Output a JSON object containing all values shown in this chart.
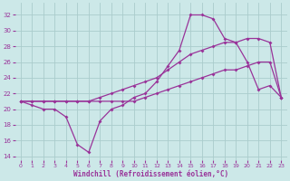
{
  "xlabel": "Windchill (Refroidissement éolien,°C)",
  "ylabel": "",
  "xlim": [
    -0.5,
    23.5
  ],
  "ylim": [
    13.5,
    33.5
  ],
  "yticks": [
    14,
    16,
    18,
    20,
    22,
    24,
    26,
    28,
    30,
    32
  ],
  "xticks": [
    0,
    1,
    2,
    3,
    4,
    5,
    6,
    7,
    8,
    9,
    10,
    11,
    12,
    13,
    14,
    15,
    16,
    17,
    18,
    19,
    20,
    21,
    22,
    23
  ],
  "bg_color": "#cce8e8",
  "grid_color": "#aacccc",
  "line_color": "#993399",
  "line1_x": [
    0,
    1,
    2,
    3,
    4,
    5,
    6,
    7,
    8,
    9,
    10,
    11,
    12,
    13,
    14,
    15,
    16,
    17,
    18,
    19,
    20,
    21,
    22,
    23
  ],
  "line1_y": [
    21,
    20.5,
    20,
    20,
    19,
    15.5,
    14.5,
    18.5,
    20,
    20.5,
    21.5,
    22,
    23.5,
    25.5,
    27.5,
    32,
    32,
    31.5,
    29,
    28.5,
    26,
    22.5,
    23,
    21.5
  ],
  "line2_x": [
    0,
    1,
    2,
    3,
    4,
    5,
    6,
    7,
    8,
    9,
    10,
    11,
    12,
    13,
    14,
    15,
    16,
    17,
    18,
    19,
    20,
    21,
    22,
    23
  ],
  "line2_y": [
    21,
    21,
    21,
    21,
    21,
    21,
    21,
    21,
    21,
    21,
    21,
    21.5,
    22,
    22.5,
    23,
    23.5,
    24,
    24.5,
    25,
    25,
    25.5,
    26,
    26,
    21.5
  ],
  "line3_x": [
    0,
    1,
    2,
    3,
    4,
    5,
    6,
    7,
    8,
    9,
    10,
    11,
    12,
    13,
    14,
    15,
    16,
    17,
    18,
    19,
    20,
    21,
    22,
    23
  ],
  "line3_y": [
    21,
    21,
    21,
    21,
    21,
    21,
    21,
    21.5,
    22,
    22.5,
    23,
    23.5,
    24,
    25,
    26,
    27,
    27.5,
    28,
    28.5,
    28.5,
    29,
    29,
    28.5,
    21.5
  ]
}
